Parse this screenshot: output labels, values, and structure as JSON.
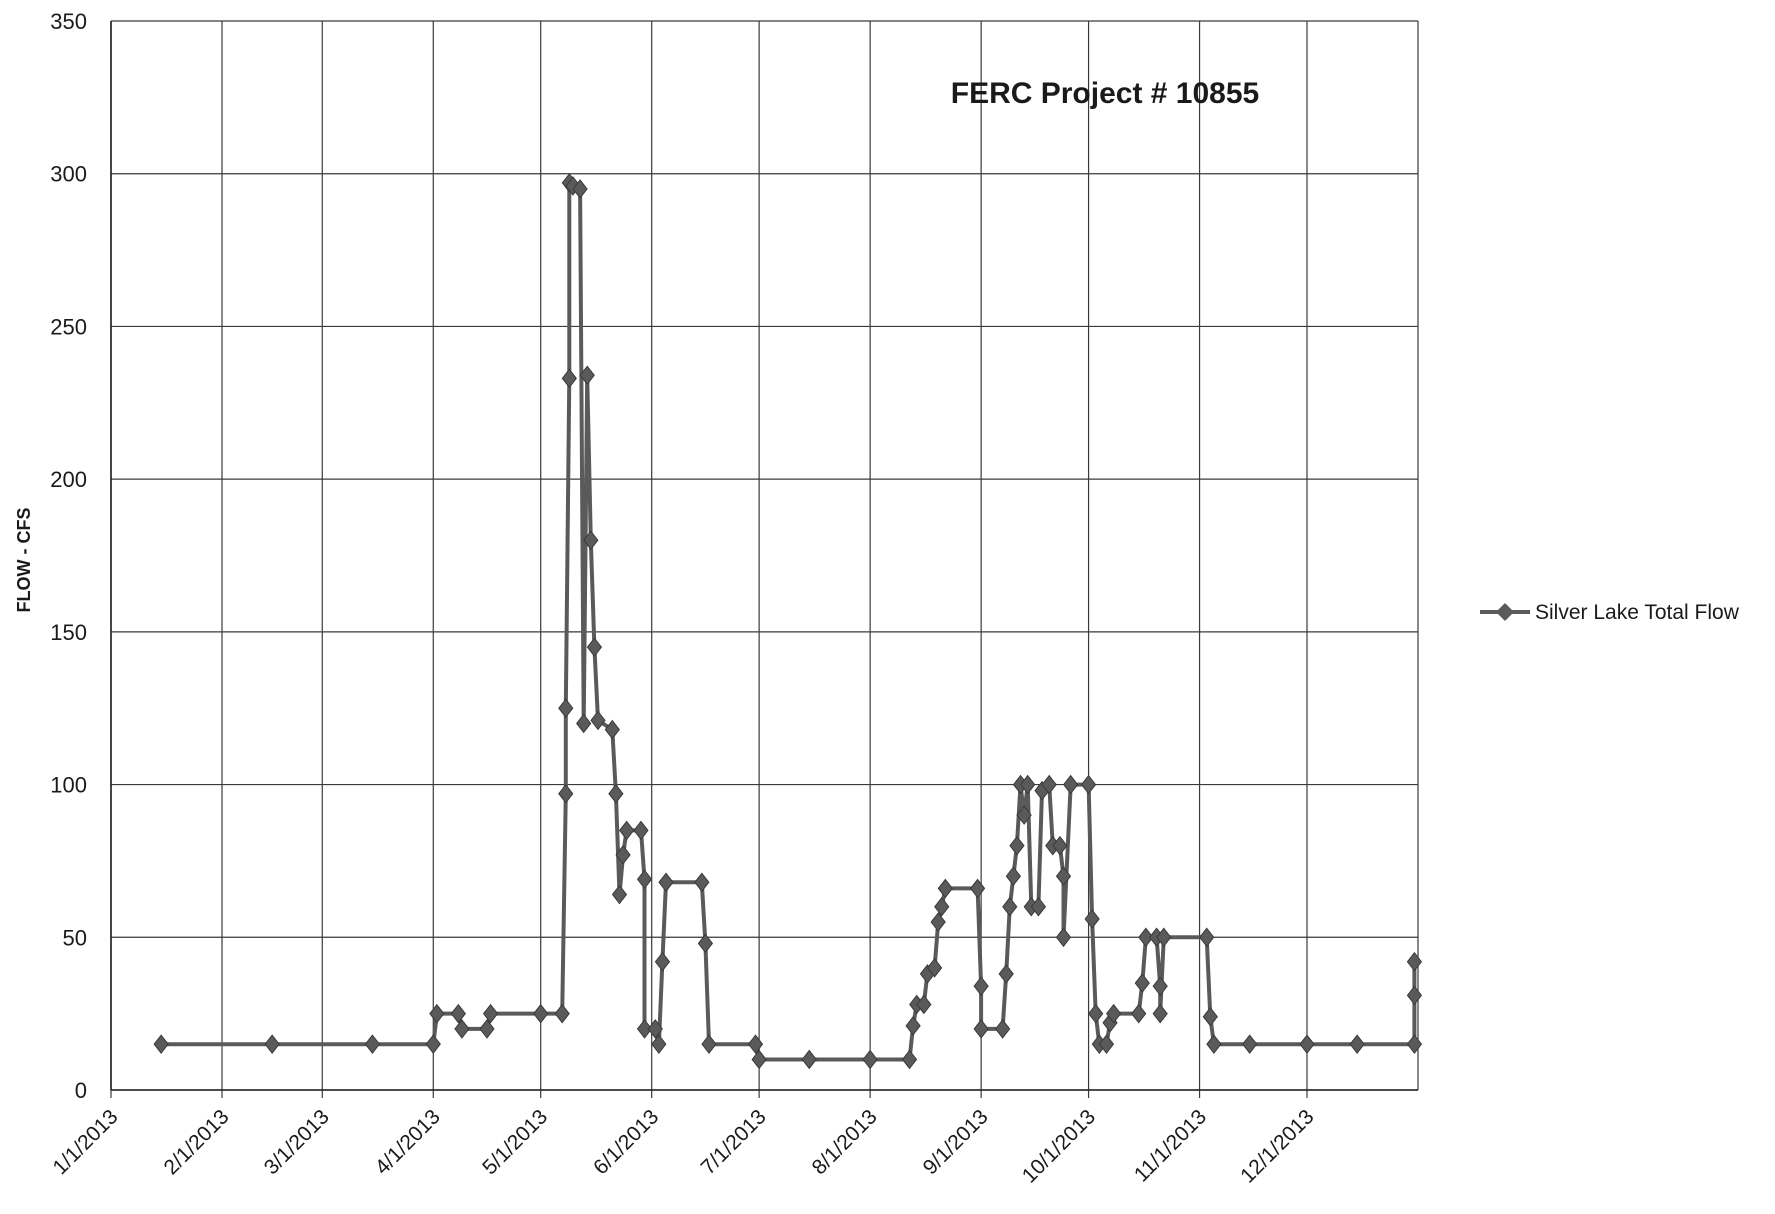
{
  "chart_data": {
    "type": "line",
    "title": "FERC Project # 10855",
    "xlabel": "",
    "ylabel": "FLOW - CFS",
    "ylim": [
      0,
      350
    ],
    "yticks": [
      "0",
      "50",
      "100",
      "150",
      "200",
      "250",
      "300",
      "350"
    ],
    "xlim": [
      "2013-01-01",
      "2014-01-01"
    ],
    "xticks": [
      "1/1/2013",
      "2/1/2013",
      "3/1/2013",
      "4/1/2013",
      "5/1/2013",
      "6/1/2013",
      "7/1/2013",
      "8/1/2013",
      "9/1/2013",
      "10/1/2013",
      "11/1/2013",
      "12/1/2013"
    ],
    "grid": true,
    "legend": "right",
    "series": [
      {
        "name": "Silver Lake Total Flow",
        "color": "#5a5a5a",
        "marker": "diamond",
        "points": [
          {
            "x": "2013-01-15",
            "y": 15
          },
          {
            "x": "2013-02-15",
            "y": 15
          },
          {
            "x": "2013-03-15",
            "y": 15
          },
          {
            "x": "2013-04-01",
            "y": 15
          },
          {
            "x": "2013-04-02",
            "y": 25
          },
          {
            "x": "2013-04-08",
            "y": 25
          },
          {
            "x": "2013-04-09",
            "y": 20
          },
          {
            "x": "2013-04-16",
            "y": 20
          },
          {
            "x": "2013-04-17",
            "y": 25
          },
          {
            "x": "2013-05-01",
            "y": 25
          },
          {
            "x": "2013-05-07",
            "y": 25
          },
          {
            "x": "2013-05-08",
            "y": 97
          },
          {
            "x": "2013-05-08",
            "y": 125
          },
          {
            "x": "2013-05-09",
            "y": 233
          },
          {
            "x": "2013-05-09",
            "y": 297
          },
          {
            "x": "2013-05-10",
            "y": 296
          },
          {
            "x": "2013-05-12",
            "y": 295
          },
          {
            "x": "2013-05-13",
            "y": 120
          },
          {
            "x": "2013-05-14",
            "y": 234
          },
          {
            "x": "2013-05-15",
            "y": 180
          },
          {
            "x": "2013-05-16",
            "y": 145
          },
          {
            "x": "2013-05-17",
            "y": 121
          },
          {
            "x": "2013-05-21",
            "y": 118
          },
          {
            "x": "2013-05-22",
            "y": 97
          },
          {
            "x": "2013-05-23",
            "y": 64
          },
          {
            "x": "2013-05-24",
            "y": 77
          },
          {
            "x": "2013-05-25",
            "y": 85
          },
          {
            "x": "2013-05-29",
            "y": 85
          },
          {
            "x": "2013-05-30",
            "y": 69
          },
          {
            "x": "2013-05-30",
            "y": 20
          },
          {
            "x": "2013-06-02",
            "y": 20
          },
          {
            "x": "2013-06-03",
            "y": 15
          },
          {
            "x": "2013-06-04",
            "y": 42
          },
          {
            "x": "2013-06-05",
            "y": 68
          },
          {
            "x": "2013-06-15",
            "y": 68
          },
          {
            "x": "2013-06-16",
            "y": 48
          },
          {
            "x": "2013-06-17",
            "y": 15
          },
          {
            "x": "2013-06-30",
            "y": 15
          },
          {
            "x": "2013-07-01",
            "y": 10
          },
          {
            "x": "2013-07-15",
            "y": 10
          },
          {
            "x": "2013-08-01",
            "y": 10
          },
          {
            "x": "2013-08-12",
            "y": 10
          },
          {
            "x": "2013-08-13",
            "y": 21
          },
          {
            "x": "2013-08-14",
            "y": 28
          },
          {
            "x": "2013-08-16",
            "y": 28
          },
          {
            "x": "2013-08-17",
            "y": 38
          },
          {
            "x": "2013-08-19",
            "y": 40
          },
          {
            "x": "2013-08-20",
            "y": 55
          },
          {
            "x": "2013-08-21",
            "y": 60
          },
          {
            "x": "2013-08-22",
            "y": 66
          },
          {
            "x": "2013-08-31",
            "y": 66
          },
          {
            "x": "2013-09-01",
            "y": 34
          },
          {
            "x": "2013-09-01",
            "y": 20
          },
          {
            "x": "2013-09-07",
            "y": 20
          },
          {
            "x": "2013-09-08",
            "y": 38
          },
          {
            "x": "2013-09-09",
            "y": 60
          },
          {
            "x": "2013-09-10",
            "y": 70
          },
          {
            "x": "2013-09-11",
            "y": 80
          },
          {
            "x": "2013-09-12",
            "y": 100
          },
          {
            "x": "2013-09-13",
            "y": 90
          },
          {
            "x": "2013-09-14",
            "y": 100
          },
          {
            "x": "2013-09-15",
            "y": 60
          },
          {
            "x": "2013-09-17",
            "y": 60
          },
          {
            "x": "2013-09-18",
            "y": 98
          },
          {
            "x": "2013-09-20",
            "y": 100
          },
          {
            "x": "2013-09-21",
            "y": 80
          },
          {
            "x": "2013-09-23",
            "y": 80
          },
          {
            "x": "2013-09-24",
            "y": 70
          },
          {
            "x": "2013-09-24",
            "y": 50
          },
          {
            "x": "2013-09-26",
            "y": 100
          },
          {
            "x": "2013-10-01",
            "y": 100
          },
          {
            "x": "2013-10-02",
            "y": 56
          },
          {
            "x": "2013-10-03",
            "y": 25
          },
          {
            "x": "2013-10-04",
            "y": 15
          },
          {
            "x": "2013-10-06",
            "y": 15
          },
          {
            "x": "2013-10-07",
            "y": 22
          },
          {
            "x": "2013-10-08",
            "y": 25
          },
          {
            "x": "2013-10-15",
            "y": 25
          },
          {
            "x": "2013-10-16",
            "y": 35
          },
          {
            "x": "2013-10-17",
            "y": 50
          },
          {
            "x": "2013-10-20",
            "y": 50
          },
          {
            "x": "2013-10-21",
            "y": 34
          },
          {
            "x": "2013-10-21",
            "y": 25
          },
          {
            "x": "2013-10-22",
            "y": 50
          },
          {
            "x": "2013-11-03",
            "y": 50
          },
          {
            "x": "2013-11-04",
            "y": 24
          },
          {
            "x": "2013-11-05",
            "y": 15
          },
          {
            "x": "2013-11-15",
            "y": 15
          },
          {
            "x": "2013-12-01",
            "y": 15
          },
          {
            "x": "2013-12-15",
            "y": 15
          },
          {
            "x": "2013-12-31",
            "y": 15
          },
          {
            "x": "2013-12-31",
            "y": 31
          },
          {
            "x": "2013-12-31",
            "y": 42
          }
        ]
      }
    ]
  }
}
